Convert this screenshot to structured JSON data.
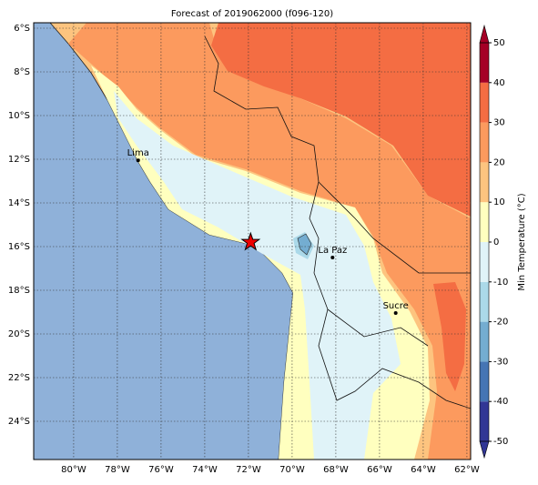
{
  "map": {
    "title": "Forecast of 2019062000 (f096-120)",
    "xlim": [
      -81.83,
      -61.83
    ],
    "ylim": [
      -25.75,
      -5.75
    ],
    "xticks": [
      {
        "value": -80,
        "label": "80°W"
      },
      {
        "value": -78,
        "label": "78°W"
      },
      {
        "value": -76,
        "label": "76°W"
      },
      {
        "value": -74,
        "label": "74°W"
      },
      {
        "value": -72,
        "label": "72°W"
      },
      {
        "value": -70,
        "label": "70°W"
      },
      {
        "value": -68,
        "label": "68°W"
      },
      {
        "value": -66,
        "label": "66°W"
      },
      {
        "value": -64,
        "label": "64°W"
      },
      {
        "value": -62,
        "label": "62°W"
      }
    ],
    "yticks": [
      {
        "value": -6,
        "label": "6°S"
      },
      {
        "value": -8,
        "label": "8°S"
      },
      {
        "value": -10,
        "label": "10°S"
      },
      {
        "value": -12,
        "label": "12°S"
      },
      {
        "value": -14,
        "label": "14°S"
      },
      {
        "value": -16,
        "label": "16°S"
      },
      {
        "value": -18,
        "label": "18°S"
      },
      {
        "value": -20,
        "label": "20°S"
      },
      {
        "value": -22,
        "label": "22°S"
      },
      {
        "value": -24,
        "label": "24°S"
      }
    ],
    "colorbar": {
      "label": "Min Temperature (°C)",
      "ticks": [
        -50,
        -40,
        -30,
        -20,
        -10,
        0,
        10,
        20,
        30,
        40,
        50
      ],
      "colors": [
        "#313695",
        "#4575b4",
        "#74add1",
        "#abd9e9",
        "#e0f3f8",
        "#ffffbf",
        "#fdc47f",
        "#fc9a5e",
        "#f46d43",
        "#a50026"
      ]
    },
    "cities": [
      {
        "name": "Lima",
        "lon": -77.05,
        "lat": -12.05
      },
      {
        "name": "La Paz",
        "lon": -68.15,
        "lat": -16.5
      },
      {
        "name": "Sucre",
        "lon": -65.26,
        "lat": -19.04
      }
    ],
    "marker": {
      "lon": -71.9,
      "lat": -15.8
    }
  }
}
